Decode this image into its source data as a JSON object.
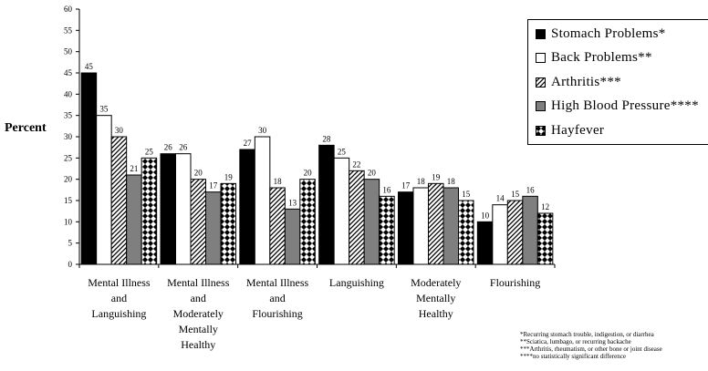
{
  "chart_data": {
    "type": "bar",
    "ylabel": "Percent",
    "ylim": [
      0,
      60
    ],
    "ytick_step": 5,
    "categories": [
      [
        "Mental Illness",
        "and",
        "Languishing"
      ],
      [
        "Mental Illness",
        "and",
        "Moderately",
        "Mentally",
        "Healthy"
      ],
      [
        "Mental Illness",
        "and",
        "Flourishing"
      ],
      [
        "Languishing"
      ],
      [
        "Moderately",
        "Mentally",
        "Healthy"
      ],
      [
        "Flourishing"
      ]
    ],
    "series": [
      {
        "name": "Stomach Problems*",
        "pattern": "solid-black",
        "values": [
          45,
          26,
          27,
          28,
          17,
          10
        ]
      },
      {
        "name": "Back Problems**",
        "pattern": "white",
        "values": [
          35,
          26,
          30,
          25,
          18,
          14
        ]
      },
      {
        "name": "Arthritis***",
        "pattern": "diagonal-hatch",
        "values": [
          30,
          20,
          18,
          22,
          19,
          15
        ]
      },
      {
        "name": "High Blood Pressure****",
        "pattern": "solid-gray",
        "values": [
          21,
          17,
          13,
          20,
          18,
          16
        ]
      },
      {
        "name": "Hayfever",
        "pattern": "checkerboard",
        "values": [
          25,
          19,
          20,
          16,
          15,
          12
        ]
      }
    ],
    "legend_position": "top-right",
    "grid": false,
    "colors": {
      "black": "#000000",
      "white": "#ffffff",
      "gray": "#7f7f7f"
    }
  },
  "footnotes": [
    "*Recurring stomach trouble, indigestion, or diarrhea",
    "**Sciatica, lumbago, or recurring backache",
    "***Arthritis, rheumatism, or other bone or joint disease",
    "****no statistically significant difference"
  ]
}
